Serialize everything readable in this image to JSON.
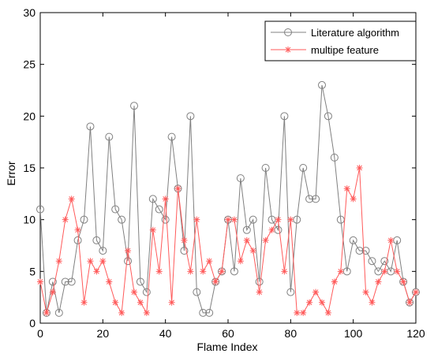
{
  "chart_data": {
    "type": "line",
    "title": "",
    "xlabel": "Flame Index",
    "ylabel": "Error",
    "xlim": [
      0,
      120
    ],
    "ylim": [
      0,
      30
    ],
    "xticks": [
      0,
      20,
      40,
      60,
      80,
      100,
      120
    ],
    "yticks": [
      0,
      5,
      10,
      15,
      20,
      25,
      30
    ],
    "grid": false,
    "legend_position": "top-right",
    "series": [
      {
        "name": "Literature algorithm",
        "color": "#808080",
        "marker": "circle",
        "x": [
          0,
          2,
          4,
          6,
          8,
          10,
          12,
          14,
          16,
          18,
          20,
          22,
          24,
          26,
          28,
          30,
          32,
          34,
          36,
          38,
          40,
          42,
          44,
          46,
          48,
          50,
          52,
          54,
          56,
          58,
          60,
          62,
          64,
          66,
          68,
          70,
          72,
          74,
          76,
          78,
          80,
          82,
          84,
          86,
          88,
          90,
          92,
          94,
          96,
          98,
          100,
          102,
          104,
          106,
          108,
          110,
          112,
          114,
          116,
          118,
          120
        ],
        "values": [
          11,
          1,
          4,
          1,
          4,
          4,
          8,
          10,
          19,
          8,
          7,
          18,
          11,
          10,
          6,
          21,
          4,
          3,
          12,
          11,
          10,
          18,
          13,
          7,
          20,
          3,
          1,
          1,
          4,
          5,
          10,
          5,
          14,
          9,
          10,
          4,
          15,
          10,
          9,
          20,
          3,
          10,
          15,
          12,
          12,
          23,
          20,
          16,
          10,
          5,
          8,
          7,
          7,
          6,
          5,
          6,
          5,
          8,
          4,
          2,
          3
        ]
      },
      {
        "name": "multipe feature",
        "color": "#ff5a5a",
        "marker": "star",
        "x": [
          0,
          2,
          4,
          6,
          8,
          10,
          12,
          14,
          16,
          18,
          20,
          22,
          24,
          26,
          28,
          30,
          32,
          34,
          36,
          38,
          40,
          42,
          44,
          46,
          48,
          50,
          52,
          54,
          56,
          58,
          60,
          62,
          64,
          66,
          68,
          70,
          72,
          74,
          76,
          78,
          80,
          82,
          84,
          86,
          88,
          90,
          92,
          94,
          96,
          98,
          100,
          102,
          104,
          106,
          108,
          110,
          112,
          114,
          116,
          118,
          120
        ],
        "values": [
          4,
          1,
          3,
          6,
          10,
          12,
          9,
          2,
          6,
          5,
          6,
          4,
          2,
          1,
          7,
          3,
          2,
          1,
          9,
          5,
          12,
          2,
          13,
          8,
          5,
          10,
          5,
          6,
          4,
          5,
          10,
          10,
          6,
          8,
          7,
          3,
          8,
          9,
          10,
          5,
          10,
          1,
          1,
          2,
          3,
          2,
          1,
          4,
          5,
          13,
          12,
          15,
          3,
          2,
          4,
          5,
          8,
          5,
          4,
          2,
          3
        ]
      }
    ]
  }
}
